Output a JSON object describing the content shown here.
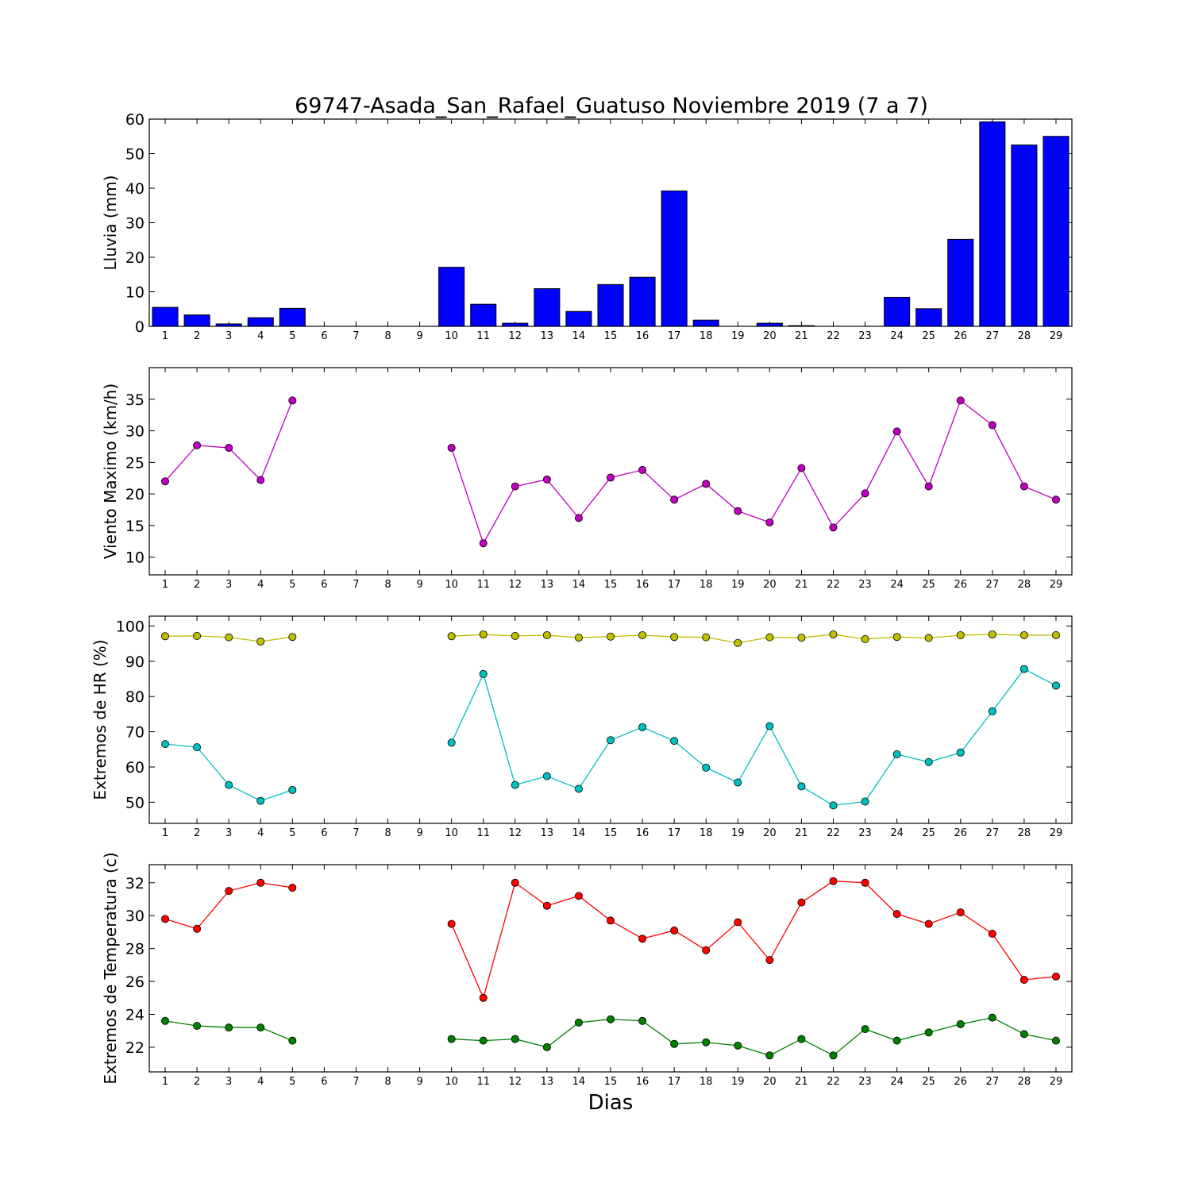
{
  "chart_data": [
    {
      "type": "bar",
      "title": "69747-Asada_San_Rafael_Guatuso Noviembre 2019  (7 a 7)",
      "ylabel": "Lluvia (mm)",
      "ylim": [
        0,
        60
      ],
      "yticks": [
        0,
        10,
        20,
        30,
        40,
        50,
        60
      ],
      "categories": [
        "1",
        "2",
        "3",
        "4",
        "5",
        "6",
        "7",
        "8",
        "9",
        "10",
        "11",
        "12",
        "13",
        "14",
        "15",
        "16",
        "17",
        "18",
        "19",
        "20",
        "21",
        "22",
        "23",
        "24",
        "25",
        "26",
        "27",
        "28",
        "29"
      ],
      "series": [
        {
          "color": "#0000ff",
          "values": [
            5.5,
            3.3,
            0.7,
            2.5,
            5.2,
            null,
            null,
            null,
            null,
            17.1,
            6.4,
            0.9,
            10.9,
            4.3,
            12.1,
            14.2,
            39.2,
            1.8,
            0.0,
            0.9,
            0.2,
            0.0,
            0.0,
            8.4,
            5.1,
            25.2,
            59.2,
            52.5,
            55.0
          ]
        }
      ]
    },
    {
      "type": "line",
      "ylabel": "Viento Maximo (km/h)",
      "ylim": [
        7.2,
        40
      ],
      "yticks": [
        10,
        15,
        20,
        25,
        30,
        35
      ],
      "categories": [
        "1",
        "2",
        "3",
        "4",
        "5",
        "6",
        "7",
        "8",
        "9",
        "10",
        "11",
        "12",
        "13",
        "14",
        "15",
        "16",
        "17",
        "18",
        "19",
        "20",
        "21",
        "22",
        "23",
        "24",
        "25",
        "26",
        "27",
        "28",
        "29"
      ],
      "series": [
        {
          "color": "#bf00bf",
          "values": [
            22.0,
            27.7,
            27.3,
            22.2,
            34.8,
            null,
            null,
            null,
            null,
            27.3,
            12.2,
            21.2,
            22.3,
            16.2,
            22.6,
            23.8,
            19.1,
            21.6,
            17.3,
            15.5,
            24.1,
            14.7,
            20.1,
            29.9,
            21.2,
            34.8,
            30.9,
            21.2,
            19.1
          ]
        }
      ]
    },
    {
      "type": "line",
      "ylabel": "Extremos de HR (%)",
      "ylim": [
        44,
        102.8
      ],
      "yticks": [
        50,
        60,
        70,
        80,
        90,
        100
      ],
      "categories": [
        "1",
        "2",
        "3",
        "4",
        "5",
        "6",
        "7",
        "8",
        "9",
        "10",
        "11",
        "12",
        "13",
        "14",
        "15",
        "16",
        "17",
        "18",
        "19",
        "20",
        "21",
        "22",
        "23",
        "24",
        "25",
        "26",
        "27",
        "28",
        "29"
      ],
      "series": [
        {
          "color": "#bfbf00",
          "values": [
            97.1,
            97.2,
            96.8,
            95.6,
            96.9,
            null,
            null,
            null,
            null,
            97.1,
            97.6,
            97.2,
            97.4,
            96.7,
            97.0,
            97.4,
            96.9,
            96.8,
            95.2,
            96.8,
            96.7,
            97.6,
            96.3,
            96.9,
            96.6,
            97.4,
            97.6,
            97.4,
            97.4
          ]
        },
        {
          "color": "#00bfbf",
          "values": [
            66.5,
            65.6,
            54.9,
            50.4,
            53.5,
            null,
            null,
            null,
            null,
            66.9,
            86.4,
            54.9,
            57.4,
            53.8,
            67.6,
            71.3,
            67.4,
            59.8,
            55.6,
            71.6,
            54.5,
            49.1,
            50.2,
            63.6,
            61.4,
            64.1,
            75.8,
            87.8,
            83.1
          ]
        }
      ]
    },
    {
      "type": "line",
      "ylabel": "Extremos de Temperatura (c)",
      "xlabel": "Dias",
      "ylim": [
        20.5,
        33.1
      ],
      "yticks": [
        22,
        24,
        26,
        28,
        30,
        32
      ],
      "categories": [
        "1",
        "2",
        "3",
        "4",
        "5",
        "6",
        "7",
        "8",
        "9",
        "10",
        "11",
        "12",
        "13",
        "14",
        "15",
        "16",
        "17",
        "18",
        "19",
        "20",
        "21",
        "22",
        "23",
        "24",
        "25",
        "26",
        "27",
        "28",
        "29"
      ],
      "series": [
        {
          "color": "#ff0000",
          "values": [
            29.8,
            29.2,
            31.5,
            32.0,
            31.7,
            null,
            null,
            null,
            null,
            29.5,
            25.0,
            32.0,
            30.6,
            31.2,
            29.7,
            28.6,
            29.1,
            27.9,
            29.6,
            27.3,
            30.8,
            32.1,
            32.0,
            30.1,
            29.5,
            30.2,
            28.9,
            26.1,
            26.3
          ]
        },
        {
          "color": "#008000",
          "values": [
            23.6,
            23.3,
            23.2,
            23.2,
            22.4,
            null,
            null,
            null,
            null,
            22.5,
            22.4,
            22.5,
            22.0,
            23.5,
            23.7,
            23.6,
            22.2,
            22.3,
            22.1,
            21.5,
            22.5,
            21.5,
            23.1,
            22.4,
            22.9,
            23.4,
            23.8,
            22.8,
            22.4
          ]
        }
      ]
    }
  ]
}
